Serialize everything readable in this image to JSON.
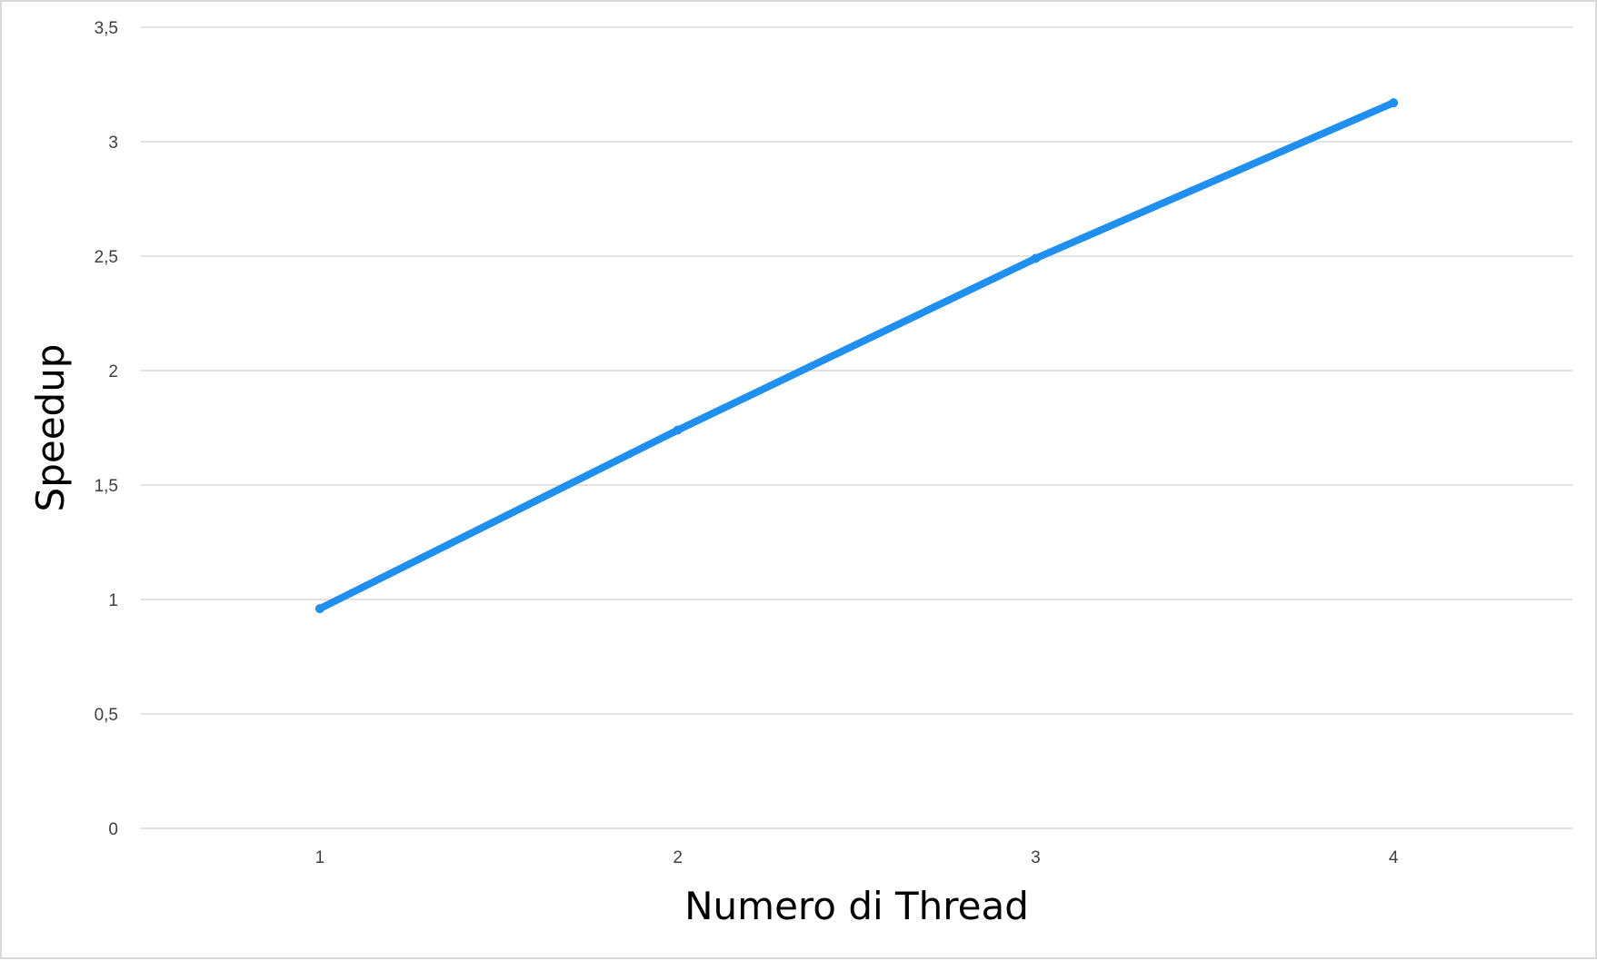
{
  "chart_data": {
    "type": "line",
    "categories": [
      "1",
      "2",
      "3",
      "4"
    ],
    "series": [
      {
        "values": [
          0.96,
          1.74,
          2.49,
          3.17
        ]
      }
    ],
    "xlabel": "Numero di Thread",
    "ylabel": "Speedup",
    "ylim": [
      0,
      3.5
    ],
    "yticks": [
      "0",
      "0,5",
      "1",
      "1,5",
      "2",
      "2,5",
      "3",
      "3,5"
    ],
    "grid": true,
    "legend": "none",
    "colors": {
      "line": "#1f8ff0",
      "grid": "#d9d9d9",
      "tick_text": "#404040"
    }
  }
}
